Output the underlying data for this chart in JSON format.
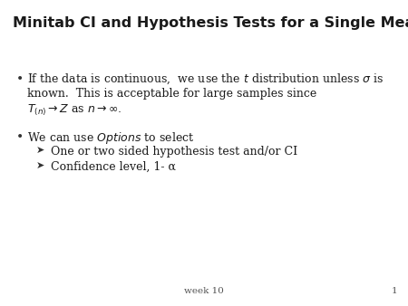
{
  "title": "Minitab CI and Hypothesis Tests for a Single Mean",
  "slide_bg": "#ffffff",
  "title_fontsize": 11.5,
  "body_fontsize": 9.0,
  "footer_fontsize": 7.5,
  "footer_text": "week 10",
  "footer_page": "1",
  "sub1": "One or two sided hypothesis test and/or CI",
  "sub2": "Confidence level, 1- α"
}
